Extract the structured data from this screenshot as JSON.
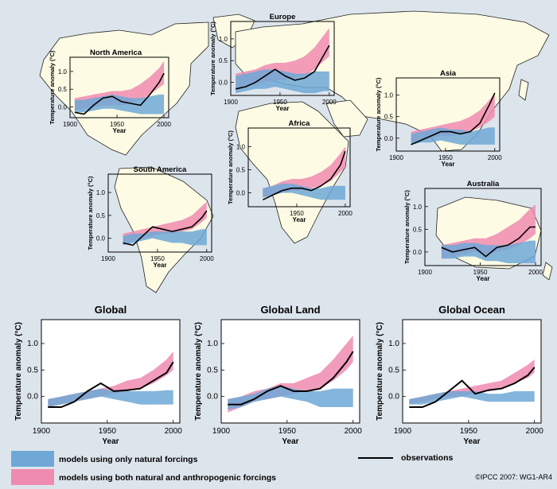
{
  "colors": {
    "ocean": "#dde5ec",
    "land": "#fdfbe4",
    "natural": "#6fa8d6",
    "anthro": "#f08bb0",
    "observations": "#000000",
    "panel_bg": "#ffffff"
  },
  "legend": {
    "natural": "models using only natural forcings",
    "anthro": "models using both natural and anthropogenic forcings",
    "observations": "observations"
  },
  "copyright": "©IPCC  2007: WG1-AR4",
  "chart_data": [
    {
      "type": "line",
      "title": "North America",
      "ylabel": "Temperature anomaly (°C)",
      "xlabel": "Year",
      "xlim": [
        1900,
        2005
      ],
      "ylim": [
        -0.3,
        1.4
      ],
      "xticks": [
        "1900",
        "1950",
        "2000"
      ],
      "yticks": [
        "0.0",
        "0.5",
        "1.0"
      ],
      "x": [
        1905,
        1915,
        1925,
        1935,
        1945,
        1955,
        1965,
        1975,
        1985,
        1995,
        2000
      ],
      "observations": [
        -0.15,
        -0.2,
        0.05,
        0.25,
        0.3,
        0.15,
        0.1,
        0.05,
        0.35,
        0.7,
        0.95
      ],
      "natural_band": [
        [
          -0.15,
          0.2
        ],
        [
          -0.15,
          0.2
        ],
        [
          -0.1,
          0.25
        ],
        [
          -0.05,
          0.3
        ],
        [
          -0.05,
          0.35
        ],
        [
          -0.1,
          0.3
        ],
        [
          -0.15,
          0.25
        ],
        [
          -0.2,
          0.25
        ],
        [
          -0.2,
          0.3
        ],
        [
          -0.2,
          0.35
        ],
        [
          -0.2,
          0.35
        ]
      ],
      "anthro_band": [
        [
          -0.1,
          0.25
        ],
        [
          -0.05,
          0.3
        ],
        [
          0.0,
          0.35
        ],
        [
          0.05,
          0.4
        ],
        [
          0.05,
          0.45
        ],
        [
          0.05,
          0.45
        ],
        [
          0.1,
          0.5
        ],
        [
          0.2,
          0.65
        ],
        [
          0.35,
          0.85
        ],
        [
          0.55,
          1.1
        ],
        [
          0.65,
          1.3
        ]
      ]
    },
    {
      "type": "line",
      "title": "Europe",
      "ylabel": "Temperature anomaly (°C)",
      "xlabel": "Year",
      "xlim": [
        1900,
        2005
      ],
      "ylim": [
        -0.3,
        1.4
      ],
      "xticks": [
        "1900",
        "1950",
        "2000"
      ],
      "yticks": [
        "0.0",
        "0.5",
        "1.0"
      ],
      "x": [
        1905,
        1915,
        1925,
        1935,
        1945,
        1955,
        1965,
        1975,
        1985,
        1995,
        2000
      ],
      "observations": [
        -0.15,
        -0.1,
        0.0,
        0.15,
        0.3,
        0.15,
        0.05,
        0.1,
        0.25,
        0.65,
        0.85
      ],
      "natural_band": [
        [
          -0.25,
          0.15
        ],
        [
          -0.2,
          0.2
        ],
        [
          -0.15,
          0.25
        ],
        [
          -0.15,
          0.3
        ],
        [
          -0.1,
          0.3
        ],
        [
          -0.15,
          0.25
        ],
        [
          -0.2,
          0.2
        ],
        [
          -0.25,
          0.2
        ],
        [
          -0.25,
          0.25
        ],
        [
          -0.2,
          0.25
        ],
        [
          -0.2,
          0.25
        ]
      ],
      "anthro_band": [
        [
          -0.2,
          0.2
        ],
        [
          -0.1,
          0.25
        ],
        [
          -0.05,
          0.3
        ],
        [
          0.0,
          0.4
        ],
        [
          0.05,
          0.45
        ],
        [
          0.05,
          0.45
        ],
        [
          0.1,
          0.5
        ],
        [
          0.15,
          0.6
        ],
        [
          0.3,
          0.8
        ],
        [
          0.5,
          1.1
        ],
        [
          0.6,
          1.25
        ]
      ]
    },
    {
      "type": "line",
      "title": "Asia",
      "ylabel": "Temperature anomaly (°C)",
      "xlabel": "Year",
      "xlim": [
        1900,
        2005
      ],
      "ylim": [
        -0.3,
        1.4
      ],
      "xticks": [
        "1900",
        "1950",
        "2000"
      ],
      "yticks": [
        "0.0",
        "0.5",
        "1.0"
      ],
      "x": [
        1915,
        1925,
        1935,
        1945,
        1955,
        1965,
        1975,
        1985,
        1995,
        2000
      ],
      "observations": [
        -0.15,
        -0.05,
        0.05,
        0.15,
        0.15,
        0.1,
        0.15,
        0.35,
        0.8,
        1.05
      ],
      "natural_band": [
        [
          -0.15,
          0.1
        ],
        [
          -0.1,
          0.15
        ],
        [
          -0.1,
          0.2
        ],
        [
          -0.05,
          0.25
        ],
        [
          -0.1,
          0.2
        ],
        [
          -0.15,
          0.2
        ],
        [
          -0.15,
          0.15
        ],
        [
          -0.15,
          0.2
        ],
        [
          -0.15,
          0.25
        ],
        [
          -0.15,
          0.25
        ]
      ],
      "anthro_band": [
        [
          -0.1,
          0.15
        ],
        [
          -0.05,
          0.2
        ],
        [
          0.0,
          0.25
        ],
        [
          0.05,
          0.3
        ],
        [
          0.05,
          0.35
        ],
        [
          0.1,
          0.4
        ],
        [
          0.15,
          0.5
        ],
        [
          0.25,
          0.65
        ],
        [
          0.4,
          0.9
        ],
        [
          0.5,
          1.05
        ]
      ]
    },
    {
      "type": "line",
      "title": "Africa",
      "ylabel": "Temperature anomaly (°C)",
      "xlabel": "Year",
      "xlim": [
        1900,
        2005
      ],
      "ylim": [
        -0.3,
        1.4
      ],
      "xticks": [
        "1950",
        "2000"
      ],
      "yticks": [
        "0.0",
        "0.5",
        "1.0"
      ],
      "x": [
        1915,
        1925,
        1935,
        1945,
        1955,
        1965,
        1975,
        1985,
        1995,
        2000
      ],
      "observations": [
        -0.15,
        -0.05,
        0.05,
        0.1,
        0.1,
        0.05,
        0.15,
        0.3,
        0.6,
        0.9
      ],
      "natural_band": [
        [
          -0.1,
          0.1
        ],
        [
          -0.05,
          0.15
        ],
        [
          0.0,
          0.2
        ],
        [
          0.0,
          0.2
        ],
        [
          -0.05,
          0.15
        ],
        [
          -0.1,
          0.1
        ],
        [
          -0.15,
          0.1
        ],
        [
          -0.15,
          0.15
        ],
        [
          -0.15,
          0.15
        ],
        [
          -0.15,
          0.15
        ]
      ],
      "anthro_band": [
        [
          -0.1,
          0.1
        ],
        [
          -0.05,
          0.15
        ],
        [
          0.0,
          0.25
        ],
        [
          0.05,
          0.3
        ],
        [
          0.05,
          0.3
        ],
        [
          0.1,
          0.35
        ],
        [
          0.15,
          0.45
        ],
        [
          0.25,
          0.6
        ],
        [
          0.45,
          0.85
        ],
        [
          0.55,
          1.0
        ]
      ]
    },
    {
      "type": "line",
      "title": "South America",
      "ylabel": "Temperature anomaly (°C)",
      "xlabel": "Year",
      "xlim": [
        1900,
        2005
      ],
      "ylim": [
        -0.3,
        1.4
      ],
      "xticks": [
        "1900",
        "1950",
        "2000"
      ],
      "yticks": [
        "0.0",
        "0.5",
        "1.0"
      ],
      "x": [
        1915,
        1925,
        1935,
        1945,
        1955,
        1965,
        1975,
        1985,
        1995,
        2000
      ],
      "observations": [
        -0.1,
        -0.15,
        0.05,
        0.25,
        0.2,
        0.15,
        0.2,
        0.25,
        0.45,
        0.6
      ],
      "natural_band": [
        [
          -0.15,
          0.05
        ],
        [
          -0.1,
          0.1
        ],
        [
          -0.05,
          0.1
        ],
        [
          0.0,
          0.15
        ],
        [
          -0.05,
          0.15
        ],
        [
          -0.1,
          0.15
        ],
        [
          -0.1,
          0.15
        ],
        [
          -0.15,
          0.15
        ],
        [
          -0.15,
          0.2
        ],
        [
          -0.15,
          0.2
        ]
      ],
      "anthro_band": [
        [
          -0.1,
          0.1
        ],
        [
          -0.05,
          0.15
        ],
        [
          0.0,
          0.2
        ],
        [
          0.05,
          0.25
        ],
        [
          0.1,
          0.3
        ],
        [
          0.1,
          0.35
        ],
        [
          0.15,
          0.4
        ],
        [
          0.2,
          0.5
        ],
        [
          0.35,
          0.7
        ],
        [
          0.45,
          0.8
        ]
      ]
    },
    {
      "type": "line",
      "title": "Australia",
      "ylabel": "Temperature anomaly (°C)",
      "xlabel": "Year",
      "xlim": [
        1900,
        2005
      ],
      "ylim": [
        -0.3,
        1.4
      ],
      "xticks": [
        "1900",
        "1950",
        "2000"
      ],
      "yticks": [
        "0.0",
        "0.5",
        "1.0"
      ],
      "x": [
        1915,
        1925,
        1935,
        1945,
        1955,
        1965,
        1975,
        1985,
        1995,
        2000
      ],
      "observations": [
        0.1,
        0.0,
        0.05,
        0.1,
        -0.1,
        0.1,
        0.15,
        0.3,
        0.55,
        0.55
      ],
      "natural_band": [
        [
          -0.15,
          0.15
        ],
        [
          -0.15,
          0.15
        ],
        [
          -0.1,
          0.2
        ],
        [
          -0.1,
          0.2
        ],
        [
          -0.2,
          0.15
        ],
        [
          -0.2,
          0.15
        ],
        [
          -0.25,
          0.15
        ],
        [
          -0.25,
          0.2
        ],
        [
          -0.25,
          0.25
        ],
        [
          -0.25,
          0.25
        ]
      ],
      "anthro_band": [
        [
          -0.15,
          0.15
        ],
        [
          -0.1,
          0.2
        ],
        [
          -0.05,
          0.25
        ],
        [
          0.0,
          0.3
        ],
        [
          -0.05,
          0.3
        ],
        [
          0.0,
          0.4
        ],
        [
          0.05,
          0.55
        ],
        [
          0.15,
          0.7
        ],
        [
          0.3,
          0.95
        ],
        [
          0.4,
          1.05
        ]
      ]
    },
    {
      "type": "line",
      "title": "Global",
      "ylabel": "Temperature anomaly (°C)",
      "xlabel": "Year",
      "xlim": [
        1900,
        2005
      ],
      "ylim": [
        -0.5,
        1.45
      ],
      "xticks": [
        "1900",
        "1950",
        "2000"
      ],
      "yticks": [
        "0.0",
        "0.5",
        "1.0"
      ],
      "x": [
        1905,
        1915,
        1925,
        1935,
        1945,
        1955,
        1965,
        1975,
        1985,
        1995,
        2000
      ],
      "observations": [
        -0.2,
        -0.2,
        -0.1,
        0.1,
        0.25,
        0.1,
        0.12,
        0.15,
        0.3,
        0.45,
        0.65
      ],
      "natural_band": [
        [
          -0.2,
          -0.05
        ],
        [
          -0.15,
          0.0
        ],
        [
          -0.1,
          0.05
        ],
        [
          -0.05,
          0.1
        ],
        [
          0.0,
          0.15
        ],
        [
          -0.05,
          0.1
        ],
        [
          -0.1,
          0.1
        ],
        [
          -0.15,
          0.1
        ],
        [
          -0.15,
          0.1
        ],
        [
          -0.15,
          0.12
        ],
        [
          -0.15,
          0.12
        ]
      ],
      "anthro_band": [
        [
          -0.2,
          -0.05
        ],
        [
          -0.15,
          0.0
        ],
        [
          -0.1,
          0.05
        ],
        [
          -0.05,
          0.1
        ],
        [
          0.0,
          0.15
        ],
        [
          0.05,
          0.2
        ],
        [
          0.1,
          0.3
        ],
        [
          0.15,
          0.35
        ],
        [
          0.25,
          0.5
        ],
        [
          0.4,
          0.7
        ],
        [
          0.5,
          0.85
        ]
      ]
    },
    {
      "type": "line",
      "title": "Global Land",
      "ylabel": "Temperature anomaly (°C)",
      "xlabel": "Year",
      "xlim": [
        1900,
        2005
      ],
      "ylim": [
        -0.5,
        1.45
      ],
      "xticks": [
        "1900",
        "1950",
        "2000"
      ],
      "yticks": [
        "0.0",
        "0.5",
        "1.0"
      ],
      "x": [
        1905,
        1915,
        1925,
        1935,
        1945,
        1955,
        1965,
        1975,
        1985,
        1995,
        2000
      ],
      "observations": [
        -0.15,
        -0.15,
        -0.05,
        0.1,
        0.2,
        0.1,
        0.1,
        0.15,
        0.35,
        0.65,
        0.85
      ],
      "natural_band": [
        [
          -0.25,
          -0.05
        ],
        [
          -0.2,
          0.0
        ],
        [
          -0.1,
          0.05
        ],
        [
          -0.05,
          0.15
        ],
        [
          0.0,
          0.2
        ],
        [
          -0.05,
          0.15
        ],
        [
          -0.1,
          0.1
        ],
        [
          -0.2,
          0.1
        ],
        [
          -0.2,
          0.15
        ],
        [
          -0.2,
          0.15
        ],
        [
          -0.2,
          0.15
        ]
      ],
      "anthro_band": [
        [
          -0.3,
          -0.05
        ],
        [
          -0.2,
          0.0
        ],
        [
          -0.1,
          0.1
        ],
        [
          -0.05,
          0.15
        ],
        [
          0.0,
          0.25
        ],
        [
          0.05,
          0.25
        ],
        [
          0.1,
          0.35
        ],
        [
          0.15,
          0.45
        ],
        [
          0.3,
          0.7
        ],
        [
          0.5,
          1.0
        ],
        [
          0.65,
          1.15
        ]
      ]
    },
    {
      "type": "line",
      "title": "Global Ocean",
      "ylabel": "Temperature anomaly (°C)",
      "xlabel": "Year",
      "xlim": [
        1900,
        2005
      ],
      "ylim": [
        -0.5,
        1.45
      ],
      "xticks": [
        "1900",
        "1950",
        "2000"
      ],
      "yticks": [
        "0.0",
        "0.5",
        "1.0"
      ],
      "x": [
        1905,
        1915,
        1925,
        1935,
        1945,
        1955,
        1965,
        1975,
        1985,
        1995,
        2000
      ],
      "observations": [
        -0.2,
        -0.2,
        -0.1,
        0.1,
        0.3,
        0.05,
        0.12,
        0.15,
        0.25,
        0.4,
        0.55
      ],
      "natural_band": [
        [
          -0.15,
          -0.05
        ],
        [
          -0.15,
          0.0
        ],
        [
          -0.1,
          0.05
        ],
        [
          -0.05,
          0.1
        ],
        [
          0.0,
          0.1
        ],
        [
          -0.05,
          0.1
        ],
        [
          -0.1,
          0.05
        ],
        [
          -0.1,
          0.05
        ],
        [
          -0.1,
          0.1
        ],
        [
          -0.1,
          0.1
        ],
        [
          -0.1,
          0.1
        ]
      ],
      "anthro_band": [
        [
          -0.15,
          -0.05
        ],
        [
          -0.1,
          0.0
        ],
        [
          -0.05,
          0.05
        ],
        [
          0.0,
          0.1
        ],
        [
          0.0,
          0.15
        ],
        [
          0.05,
          0.2
        ],
        [
          0.1,
          0.25
        ],
        [
          0.15,
          0.3
        ],
        [
          0.25,
          0.45
        ],
        [
          0.35,
          0.6
        ],
        [
          0.45,
          0.7
        ]
      ]
    }
  ]
}
